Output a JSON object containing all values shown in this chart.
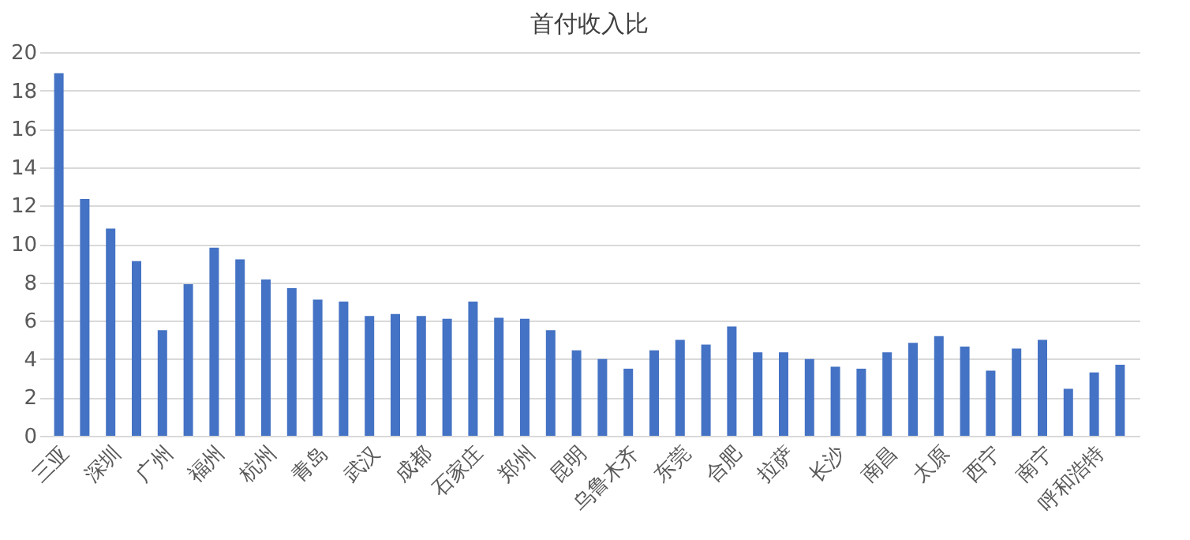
{
  "chart_data": {
    "type": "bar",
    "title": "首付收入比",
    "categories": [
      "三亚",
      null,
      "深圳",
      null,
      "广州",
      null,
      "福州",
      null,
      "杭州",
      null,
      "青岛",
      null,
      "武汉",
      null,
      "成都",
      null,
      "石家庄",
      null,
      "郑州",
      null,
      "昆明",
      null,
      "乌鲁木齐",
      null,
      "东莞",
      null,
      "合肥",
      null,
      "拉萨",
      null,
      "长沙",
      null,
      "南昌",
      null,
      "太原",
      null,
      "西宁",
      null,
      "南宁",
      null,
      "呼和浩特",
      null
    ],
    "values": [
      18.9,
      12.35,
      10.8,
      9.1,
      5.5,
      7.9,
      9.8,
      9.2,
      8.15,
      7.7,
      7.1,
      7.0,
      6.25,
      6.35,
      6.25,
      6.1,
      7.0,
      6.15,
      6.1,
      5.5,
      4.45,
      4.0,
      3.5,
      4.45,
      5.0,
      4.75,
      5.7,
      4.35,
      4.35,
      4.0,
      3.6,
      3.5,
      4.35,
      4.85,
      5.2,
      4.65,
      3.4,
      4.55,
      5.0,
      2.45,
      3.3,
      3.7
    ],
    "color": "#4472c4",
    "ylim": [
      0,
      20
    ],
    "yticks": [
      0,
      2,
      4,
      6,
      8,
      10,
      12,
      14,
      16,
      18,
      20
    ],
    "grid": "y"
  }
}
